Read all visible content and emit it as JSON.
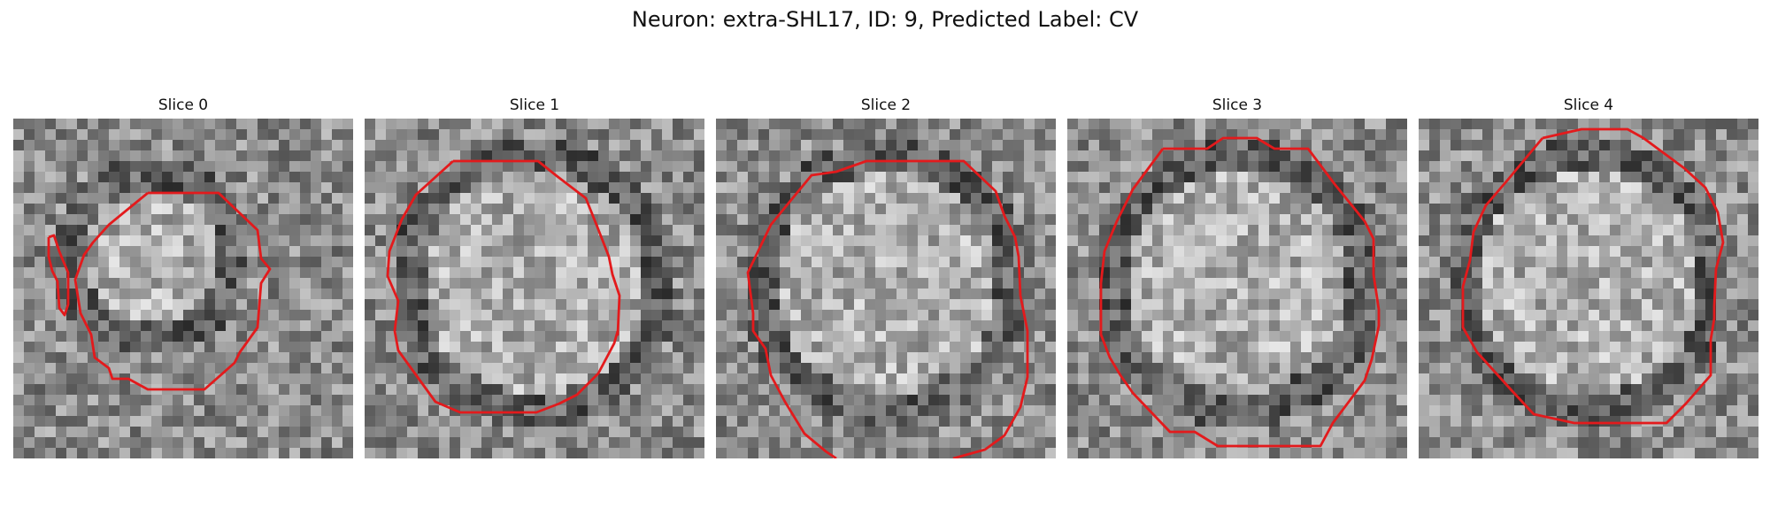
{
  "figure": {
    "title": "Neuron: extra-SHL17, ID: 9, Predicted Label: CV"
  },
  "panels": [
    {
      "title": "Slice 0"
    },
    {
      "title": "Slice 1"
    },
    {
      "title": "Slice 2"
    },
    {
      "title": "Slice 3"
    },
    {
      "title": "Slice 4"
    }
  ],
  "colors": {
    "contour": "#e31a1c",
    "background": "#ffffff",
    "colormap": "grayscale"
  }
}
